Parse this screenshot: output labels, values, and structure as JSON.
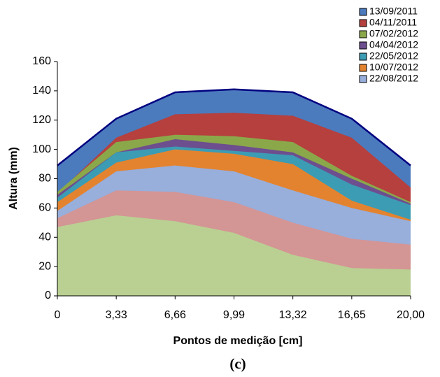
{
  "chart_data": {
    "type": "area",
    "xlabel": "Pontos de medição [cm]",
    "ylabel": "Altura (mm)",
    "caption": "(c)",
    "categories": [
      "0",
      "3,33",
      "6,66",
      "9,99",
      "13,32",
      "16,65",
      "20,00"
    ],
    "ylim": [
      0,
      160
    ],
    "yticks": [
      0,
      20,
      40,
      60,
      80,
      100,
      120,
      140,
      160
    ],
    "legend": "top-right",
    "series": [
      {
        "name": "13/09/2011",
        "color": "#4b7bbd",
        "outline": "#000080",
        "values": [
          89,
          121,
          139,
          141,
          139,
          121,
          89
        ]
      },
      {
        "name": "04/11/2011",
        "color": "#b5403e",
        "values": [
          70,
          108,
          124,
          125,
          123,
          108,
          74
        ]
      },
      {
        "name": "07/02/2012",
        "color": "#8aa84a",
        "values": [
          71,
          105,
          110,
          109,
          105,
          82,
          64
        ]
      },
      {
        "name": "04/04/2012",
        "color": "#6d4e8f",
        "values": [
          69,
          98,
          107,
          103,
          98,
          80,
          63
        ]
      },
      {
        "name": "22/05/2012",
        "color": "#3c9cb4",
        "values": [
          67,
          98,
          102,
          99,
          96,
          76,
          62
        ]
      },
      {
        "name": "10/07/2012",
        "color": "#e3832f",
        "values": [
          64,
          91,
          100,
          97,
          90,
          65,
          52
        ]
      },
      {
        "name": "22/08/2012",
        "color": "#98aedb",
        "values": [
          58,
          85,
          89,
          85,
          72,
          60,
          51
        ]
      },
      {
        "color": "#d49595",
        "values": [
          53,
          72,
          71,
          64,
          50,
          39,
          35
        ]
      },
      {
        "color": "#b9d092",
        "values": [
          47,
          55,
          51,
          43,
          28,
          19,
          18
        ]
      }
    ]
  }
}
